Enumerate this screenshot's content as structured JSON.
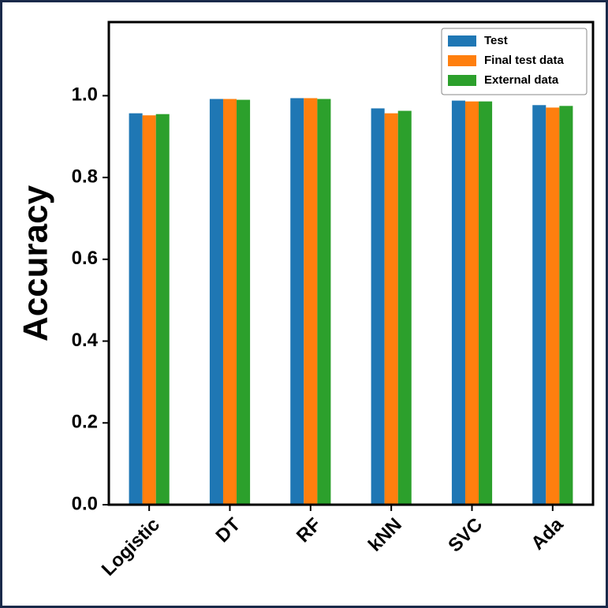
{
  "chart_data": {
    "type": "bar",
    "y_label": "Accuracy",
    "categories": [
      "Logistic",
      "DT",
      "RF",
      "kNN",
      "SVC",
      "Ada"
    ],
    "series": [
      {
        "name": "Test",
        "color": "#1f77b4",
        "values": [
          0.957,
          0.992,
          0.994,
          0.969,
          0.988,
          0.977
        ]
      },
      {
        "name": "Final test data",
        "color": "#ff7f0e",
        "values": [
          0.952,
          0.992,
          0.994,
          0.957,
          0.986,
          0.971
        ]
      },
      {
        "name": "External data",
        "color": "#2ca02c",
        "values": [
          0.955,
          0.99,
          0.992,
          0.963,
          0.986,
          0.975
        ]
      }
    ],
    "ylim": [
      0,
      1.18
    ],
    "yticks": [
      {
        "value": 0,
        "label": "0.0"
      },
      0.2,
      0.4,
      0.6,
      0.8,
      {
        "value": 1,
        "label": "1.0"
      }
    ],
    "legend": "upper right"
  }
}
